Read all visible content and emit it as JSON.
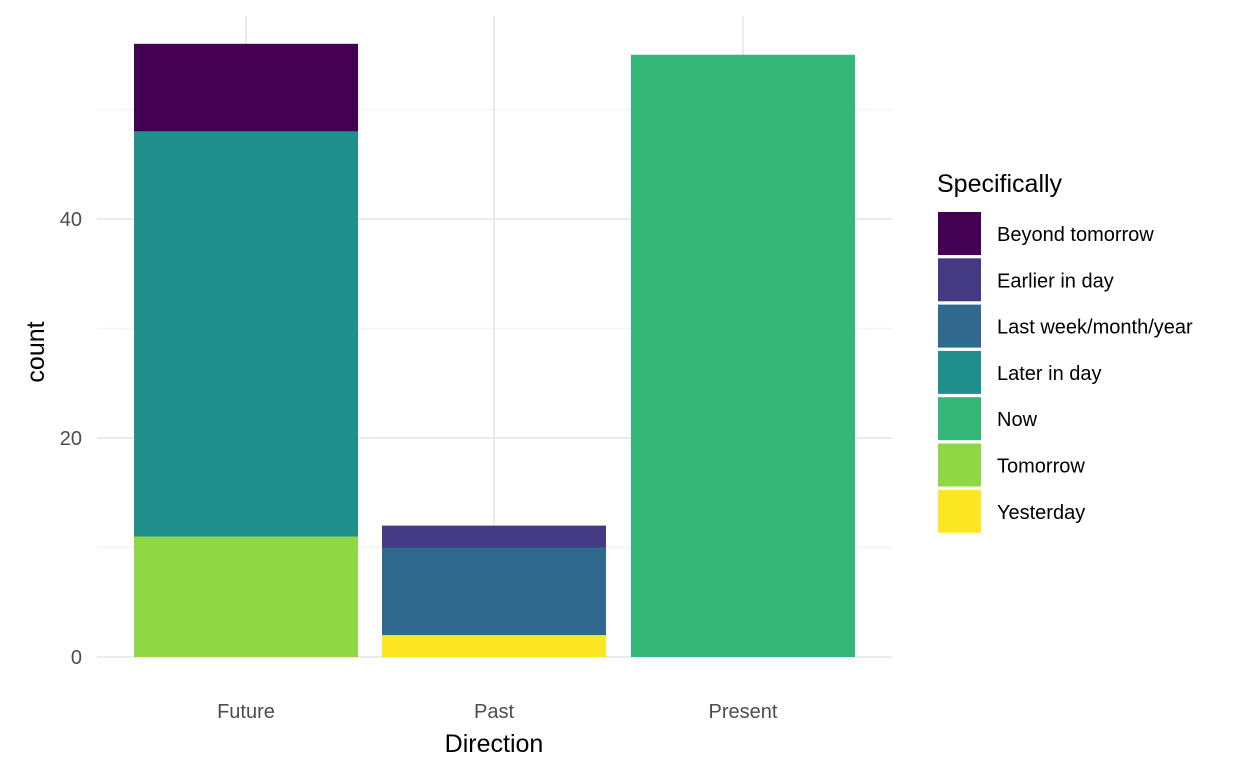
{
  "chart_data": {
    "type": "bar",
    "stacked": true,
    "categories": [
      "Future",
      "Past",
      "Present"
    ],
    "xlabel": "Direction",
    "ylabel": "count",
    "ylim": [
      0,
      58
    ],
    "yticks": [
      0,
      20,
      40
    ],
    "legend_title": "Specifically",
    "legend_position": "right",
    "series": [
      {
        "name": "Beyond tomorrow",
        "color": "#440154",
        "values": [
          8,
          0,
          0
        ]
      },
      {
        "name": "Earlier in day",
        "color": "#443a83",
        "values": [
          0,
          2,
          0
        ]
      },
      {
        "name": "Last week/month/year",
        "color": "#31688e",
        "values": [
          0,
          8,
          0
        ]
      },
      {
        "name": "Later in day",
        "color": "#21908d",
        "values": [
          37,
          0,
          0
        ]
      },
      {
        "name": "Now",
        "color": "#35b779",
        "values": [
          0,
          0,
          55
        ]
      },
      {
        "name": "Tomorrow",
        "color": "#8fd744",
        "values": [
          11,
          0,
          0
        ]
      },
      {
        "name": "Yesterday",
        "color": "#fde725",
        "values": [
          0,
          2,
          0
        ]
      }
    ]
  }
}
